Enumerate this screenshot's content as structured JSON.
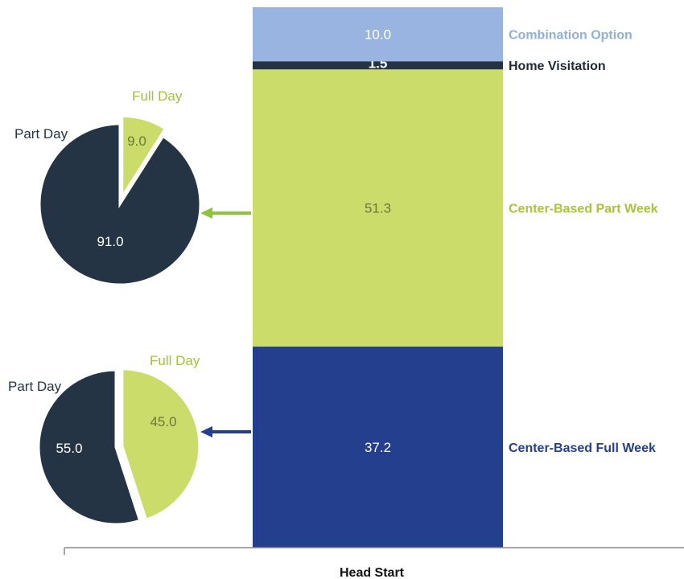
{
  "chart_data": [
    {
      "type": "bar",
      "stacked": true,
      "categories": [
        "Head Start"
      ],
      "xlabel": "Head Start",
      "ylim": [
        0,
        100
      ],
      "series": [
        {
          "name": "Center-Based Full Week",
          "values": [
            37.2
          ],
          "label": "37.2",
          "color": "#243f8e"
        },
        {
          "name": "Center-Based Part Week",
          "values": [
            51.3
          ],
          "label": "51.3",
          "color": "#cbdc6a"
        },
        {
          "name": "Home Visitation",
          "values": [
            1.5
          ],
          "label": "1.5",
          "color": "#243444"
        },
        {
          "name": "Combination Option",
          "values": [
            10.0
          ],
          "label": "10.0",
          "color": "#99b4e0"
        }
      ]
    },
    {
      "type": "pie",
      "linked_to": "Center-Based Part Week",
      "slices": [
        {
          "name": "Part Day",
          "value": 91.0,
          "label": "91.0",
          "color": "#243444"
        },
        {
          "name": "Full Day",
          "value": 9.0,
          "label": "9.0",
          "color": "#cbdc6a"
        }
      ]
    },
    {
      "type": "pie",
      "linked_to": "Center-Based Full Week",
      "slices": [
        {
          "name": "Part Day",
          "value": 55.0,
          "label": "55.0",
          "color": "#243444"
        },
        {
          "name": "Full Day",
          "value": 45.0,
          "label": "45.0",
          "color": "#cbdc6a"
        }
      ]
    }
  ],
  "colors": {
    "arrow_part_week": "#8cc43c",
    "arrow_full_week": "#243f8e",
    "legend_combination": "#8fb0dc",
    "legend_home": "#1f2a36",
    "legend_part_week": "#a9c434",
    "legend_full_week": "#243f8e",
    "pie_full_day_label": "#9fc43a",
    "pie_part_day_label": "#243444",
    "axis": "#888888"
  }
}
